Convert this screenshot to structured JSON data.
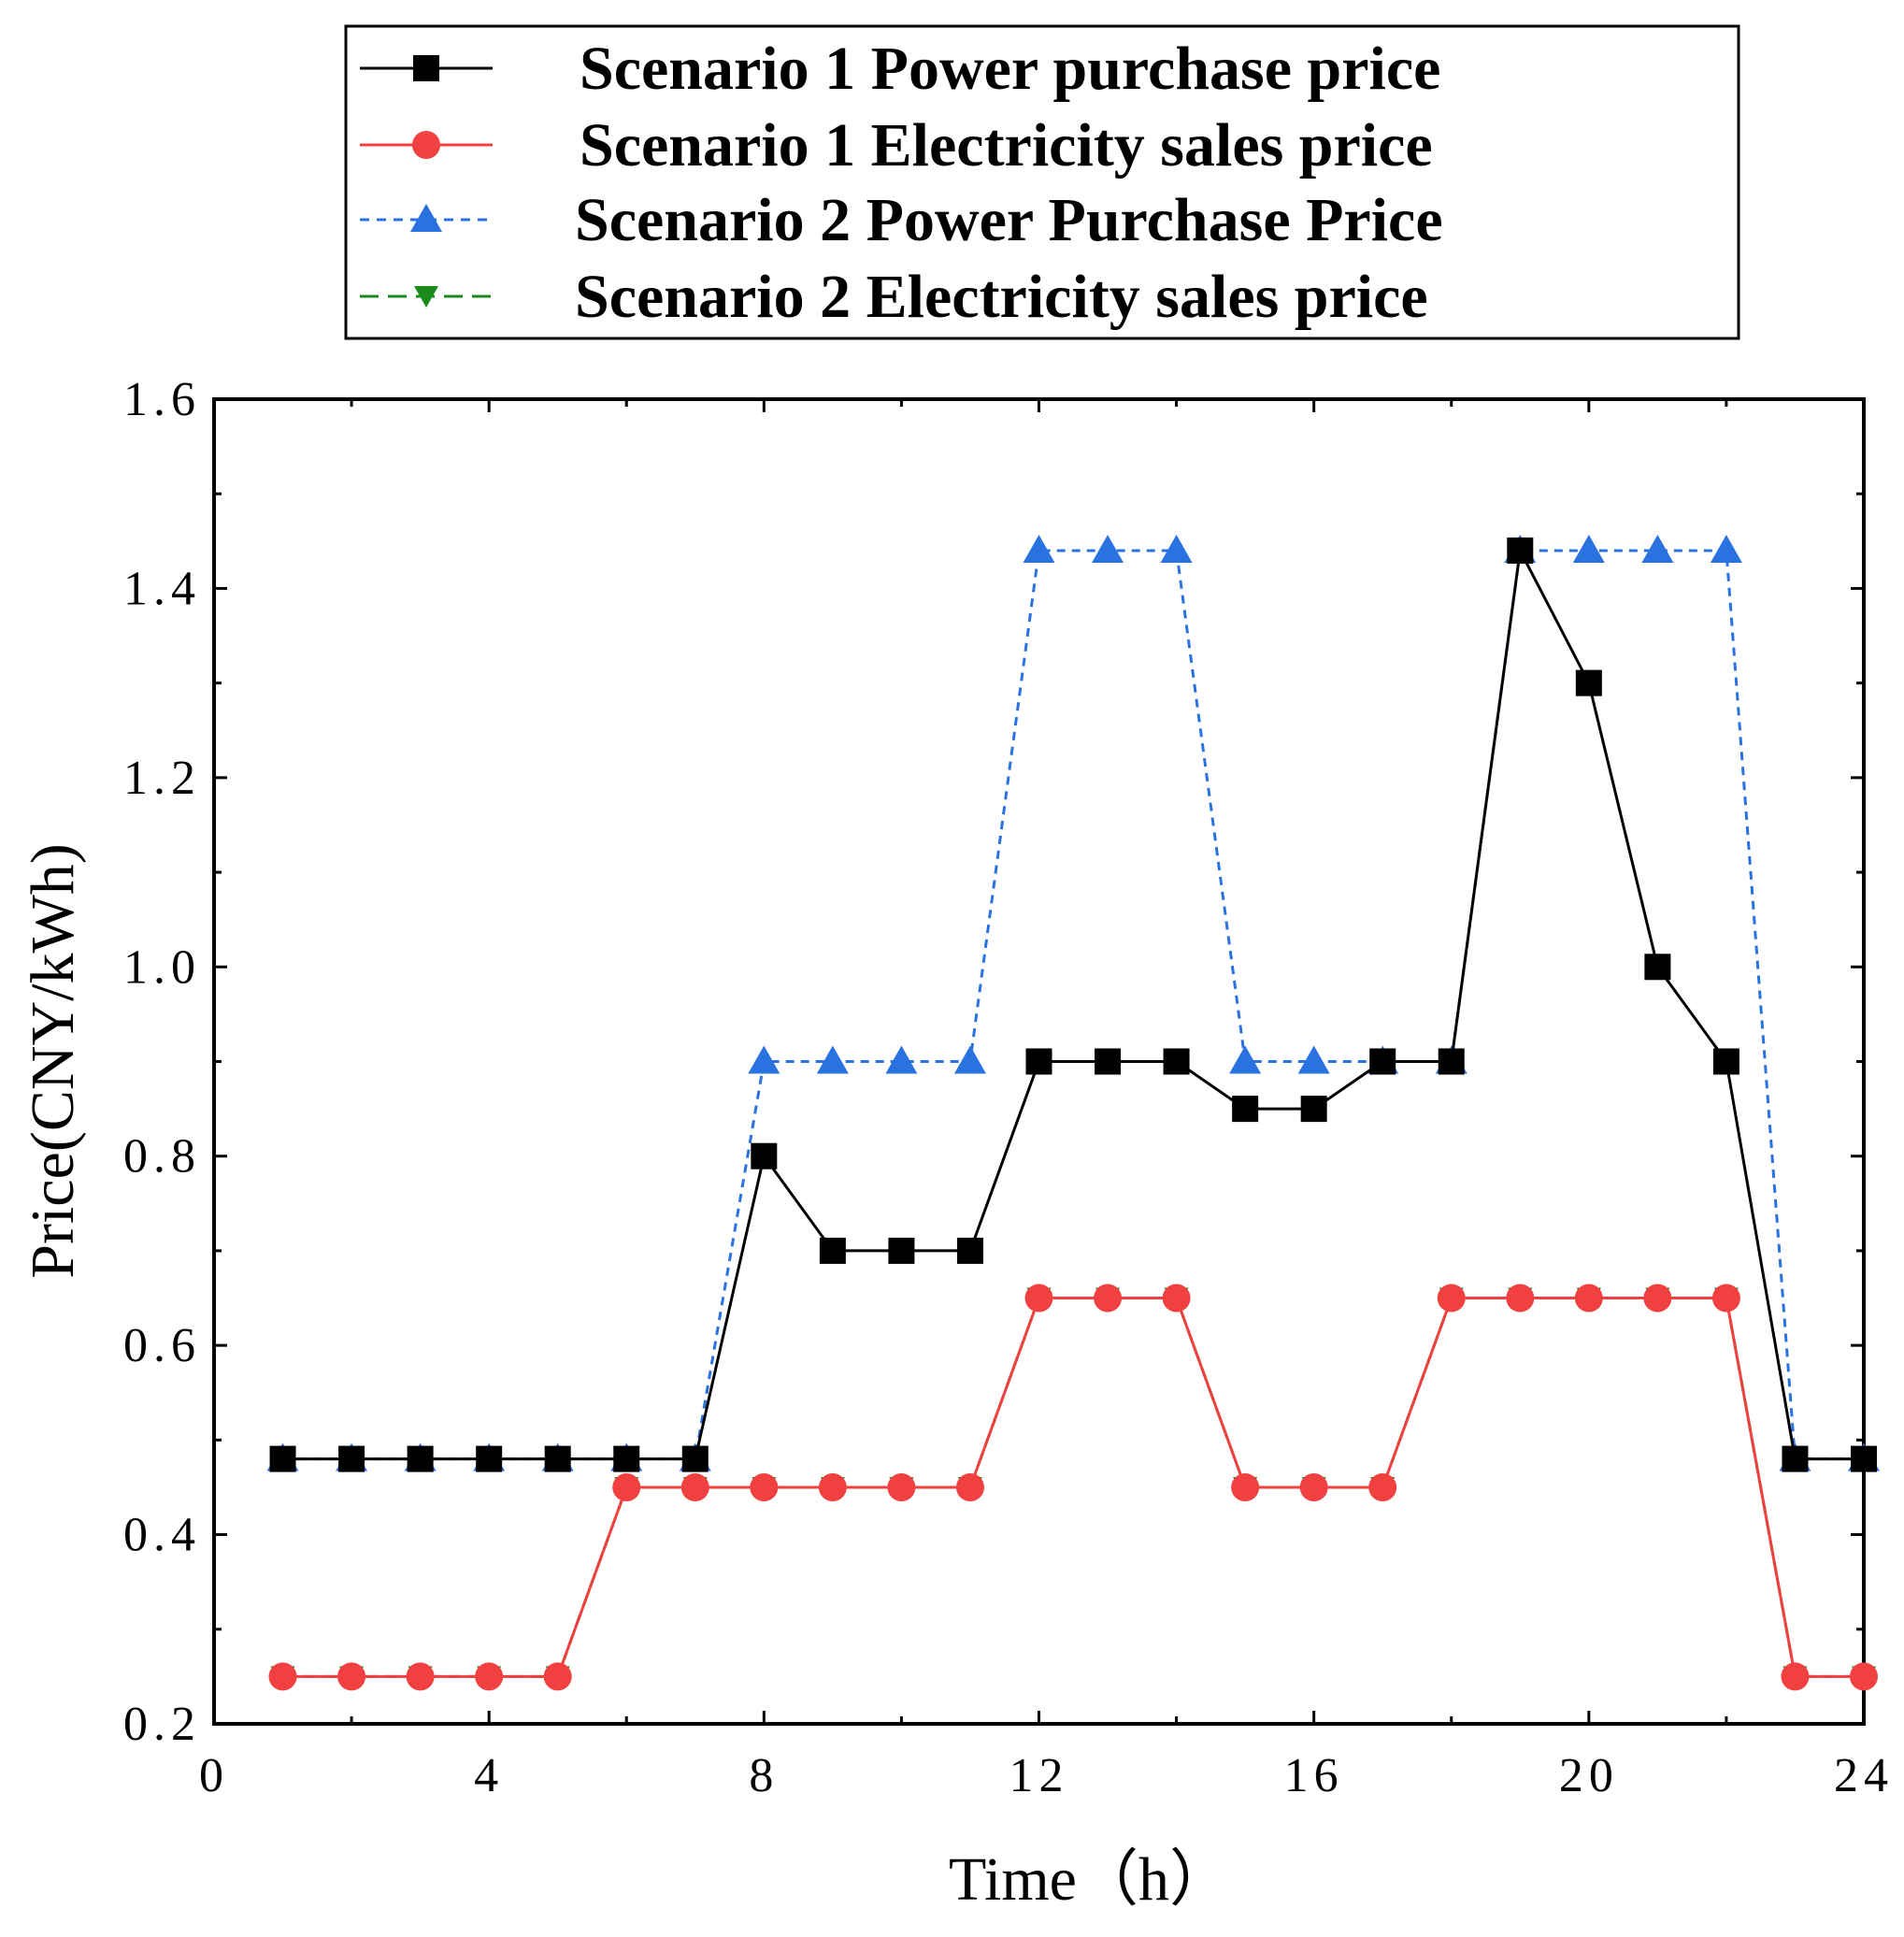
{
  "chart_data": {
    "type": "line",
    "title": "",
    "xlabel": "Time（h）",
    "ylabel": "Price(CNY/kWh)",
    "xlim": [
      0,
      24
    ],
    "ylim": [
      0.2,
      1.6
    ],
    "x_ticks": [
      0,
      4,
      8,
      12,
      16,
      20,
      24
    ],
    "y_ticks": [
      0.2,
      0.4,
      0.6,
      0.8,
      1.0,
      1.2,
      1.4,
      1.6
    ],
    "y_tick_labels": [
      "0.2",
      "0.4",
      "0.6",
      "0.8",
      "1.0",
      "1.2",
      "1.4",
      "1.6"
    ],
    "x": [
      1,
      2,
      3,
      4,
      5,
      6,
      7,
      8,
      9,
      10,
      11,
      12,
      13,
      14,
      15,
      16,
      17,
      18,
      19,
      20,
      21,
      22,
      23,
      24
    ],
    "legend_position": "top-center (above plot)",
    "grid": false,
    "series": [
      {
        "name": "Scenario 1 Power purchase price",
        "color": "#000000",
        "marker": "square",
        "line_style": "solid",
        "values": [
          0.48,
          0.48,
          0.48,
          0.48,
          0.48,
          0.48,
          0.48,
          0.8,
          0.7,
          0.7,
          0.7,
          0.9,
          0.9,
          0.9,
          0.85,
          0.85,
          0.9,
          0.9,
          1.44,
          1.3,
          1.0,
          0.9,
          0.48,
          0.48
        ]
      },
      {
        "name": "Scenario 1 Electricity sales price",
        "color": "#f04040",
        "marker": "circle",
        "line_style": "solid",
        "values": [
          0.25,
          0.25,
          0.25,
          0.25,
          0.25,
          0.45,
          0.45,
          0.45,
          0.45,
          0.45,
          0.45,
          0.65,
          0.65,
          0.65,
          0.45,
          0.45,
          0.45,
          0.65,
          0.65,
          0.65,
          0.65,
          0.65,
          0.25,
          0.25
        ]
      },
      {
        "name": "Scenario 2 Power Purchase Price",
        "color": "#2a72e0",
        "marker": "triangle-up",
        "line_style": "dashed",
        "values": [
          0.48,
          0.48,
          0.48,
          0.48,
          0.48,
          0.48,
          0.48,
          0.9,
          0.9,
          0.9,
          0.9,
          1.44,
          1.44,
          1.44,
          0.9,
          0.9,
          0.9,
          0.9,
          1.44,
          1.44,
          1.44,
          1.44,
          0.48,
          0.48
        ]
      },
      {
        "name": "Scenario 2 Electricity sales price",
        "color": "#1a8a1a",
        "marker": "triangle-down",
        "line_style": "dashed",
        "values": [
          0.25,
          0.25,
          0.25,
          0.25,
          0.25,
          0.45,
          0.45,
          0.45,
          0.45,
          0.45,
          0.45,
          0.65,
          0.65,
          0.65,
          0.45,
          0.45,
          0.45,
          0.65,
          0.65,
          0.65,
          0.65,
          0.65,
          0.25,
          0.25
        ]
      }
    ]
  }
}
